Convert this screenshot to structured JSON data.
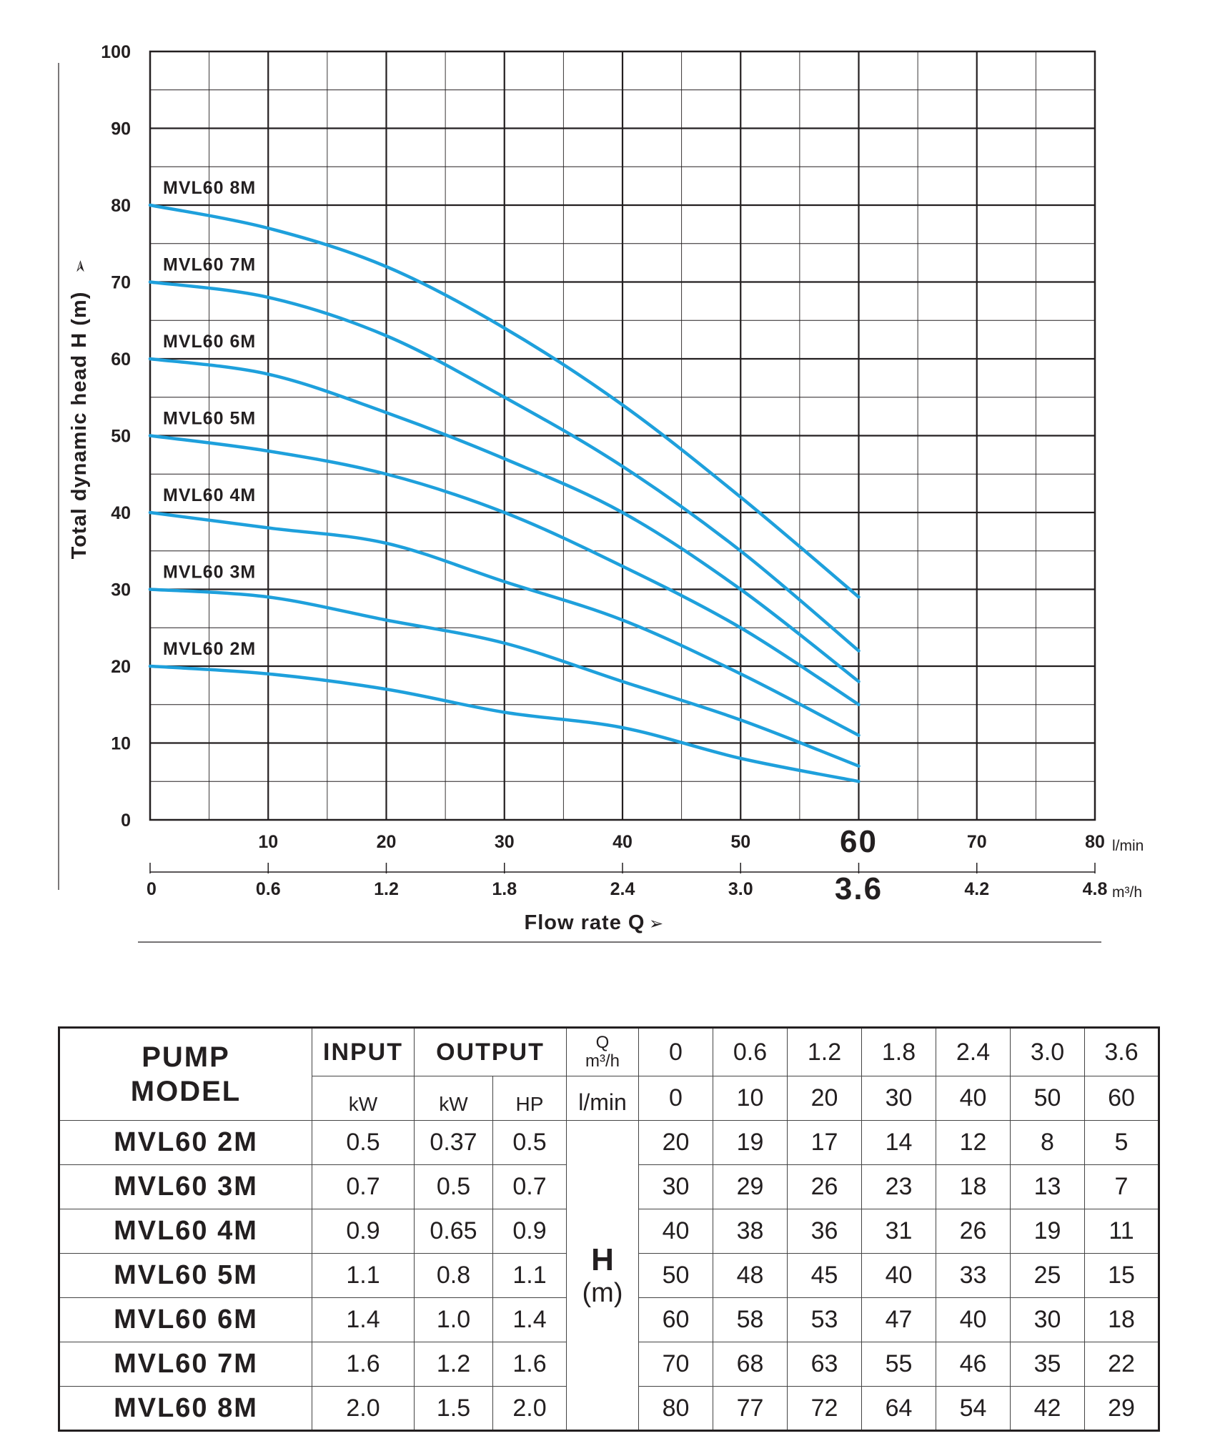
{
  "colors": {
    "curve": "#1ea0dc",
    "grid": "#231f20",
    "text": "#231f20"
  },
  "chart_data": {
    "type": "line",
    "title": "",
    "ylabel": "Total dynamic head H (m)",
    "xlabel": "Flow rate Q",
    "x_unit_lmin": "l/min",
    "x_unit_m3h": "m³/h",
    "xlim": [
      0,
      80
    ],
    "ylim": [
      0,
      100
    ],
    "yticks": [
      "0",
      "10",
      "20",
      "30",
      "40",
      "50",
      "60",
      "70",
      "80",
      "90",
      "100"
    ],
    "xticks_lmin": [
      "10",
      "20",
      "30",
      "40",
      "50",
      "60",
      "70",
      "80"
    ],
    "xticks_m3h": [
      "0",
      "0.6",
      "1.2",
      "1.8",
      "2.4",
      "3.0",
      "3.6",
      "4.2",
      "4.8"
    ],
    "x": [
      0,
      10,
      20,
      30,
      40,
      50,
      60
    ],
    "series": [
      {
        "name": "MVL60 2M",
        "values": [
          20,
          19,
          17,
          14,
          12,
          8,
          5
        ]
      },
      {
        "name": "MVL60 3M",
        "values": [
          30,
          29,
          26,
          23,
          18,
          13,
          7
        ]
      },
      {
        "name": "MVL60 4M",
        "values": [
          40,
          38,
          36,
          31,
          26,
          19,
          11
        ]
      },
      {
        "name": "MVL60 5M",
        "values": [
          50,
          48,
          45,
          40,
          33,
          25,
          15
        ]
      },
      {
        "name": "MVL60 6M",
        "values": [
          60,
          58,
          53,
          47,
          40,
          30,
          18
        ]
      },
      {
        "name": "MVL60 7M",
        "values": [
          70,
          68,
          63,
          55,
          46,
          35,
          22
        ]
      },
      {
        "name": "MVL60 8M",
        "values": [
          80,
          77,
          72,
          64,
          54,
          42,
          29
        ]
      }
    ]
  },
  "table": {
    "header": {
      "model_line1": "PUMP",
      "model_line2": "MODEL",
      "input": "INPUT",
      "output": "OUTPUT",
      "q_label": "Q",
      "q_unit": "m³/h",
      "kw_in": "kW",
      "kw_out": "kW",
      "hp": "HP",
      "lmin": "l/min",
      "h_label": "H",
      "h_unit": "(m)",
      "q_m3h": [
        "0",
        "0.6",
        "1.2",
        "1.8",
        "2.4",
        "3.0",
        "3.6"
      ],
      "q_lmin": [
        "0",
        "10",
        "20",
        "30",
        "40",
        "50",
        "60"
      ]
    },
    "rows": [
      {
        "model": "MVL60 2M",
        "input_kw": "0.5",
        "output_kw": "0.37",
        "output_hp": "0.5",
        "h": [
          "20",
          "19",
          "17",
          "14",
          "12",
          "8",
          "5"
        ]
      },
      {
        "model": "MVL60 3M",
        "input_kw": "0.7",
        "output_kw": "0.5",
        "output_hp": "0.7",
        "h": [
          "30",
          "29",
          "26",
          "23",
          "18",
          "13",
          "7"
        ]
      },
      {
        "model": "MVL60 4M",
        "input_kw": "0.9",
        "output_kw": "0.65",
        "output_hp": "0.9",
        "h": [
          "40",
          "38",
          "36",
          "31",
          "26",
          "19",
          "11"
        ]
      },
      {
        "model": "MVL60 5M",
        "input_kw": "1.1",
        "output_kw": "0.8",
        "output_hp": "1.1",
        "h": [
          "50",
          "48",
          "45",
          "40",
          "33",
          "25",
          "15"
        ]
      },
      {
        "model": "MVL60 6M",
        "input_kw": "1.4",
        "output_kw": "1.0",
        "output_hp": "1.4",
        "h": [
          "60",
          "58",
          "53",
          "47",
          "40",
          "30",
          "18"
        ]
      },
      {
        "model": "MVL60 7M",
        "input_kw": "1.6",
        "output_kw": "1.2",
        "output_hp": "1.6",
        "h": [
          "70",
          "68",
          "63",
          "55",
          "46",
          "35",
          "22"
        ]
      },
      {
        "model": "MVL60 8M",
        "input_kw": "2.0",
        "output_kw": "1.5",
        "output_hp": "2.0",
        "h": [
          "80",
          "77",
          "72",
          "64",
          "54",
          "42",
          "29"
        ]
      }
    ]
  }
}
